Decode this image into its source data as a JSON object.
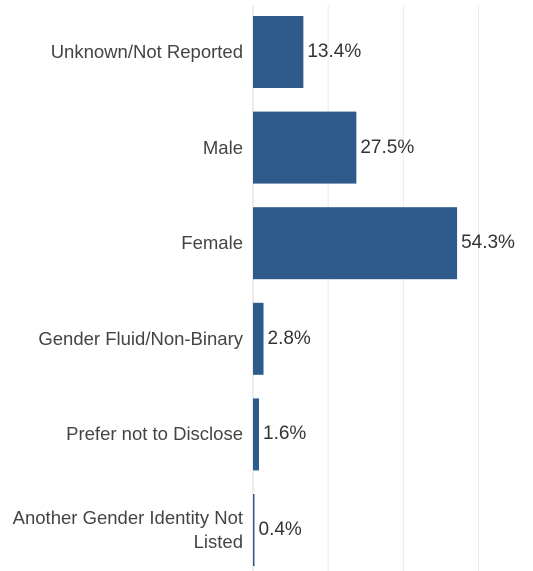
{
  "chart_data": {
    "type": "bar",
    "orientation": "horizontal",
    "categories": [
      "Unknown/Not Reported",
      "Male",
      "Female",
      "Gender Fluid/Non-Binary",
      "Prefer not to Disclose",
      "Another Gender Identity Not Listed"
    ],
    "values": [
      13.4,
      27.5,
      54.3,
      2.8,
      1.6,
      0.4
    ],
    "value_labels": [
      "13.4%",
      "27.5%",
      "54.3%",
      "2.8%",
      "1.6%",
      "0.4%"
    ],
    "color": "#2e5b8c",
    "xlim": [
      0,
      74.5
    ],
    "xticks": [
      0,
      20,
      40,
      60
    ],
    "grid": true
  }
}
